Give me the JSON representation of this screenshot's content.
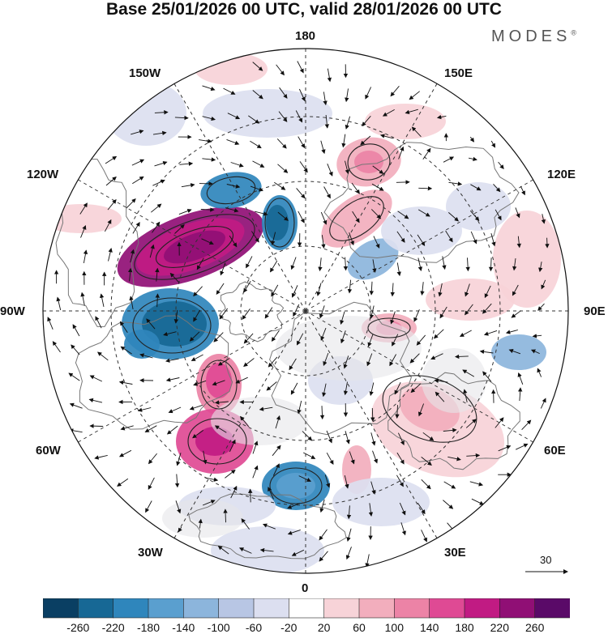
{
  "title": "Base 25/01/2026 00 UTC, valid 28/01/2026 00 UTC",
  "brand": "MODES",
  "brand_mark": "®",
  "longitude_labels": {
    "top": "180",
    "bottom": "0",
    "left": "90W",
    "right": "90E",
    "upper_left_150": "150W",
    "upper_right_150": "150E",
    "left_120": "120W",
    "right_120": "120E",
    "lower_left_60": "60W",
    "lower_right_60": "60E",
    "lower_left_30": "30W",
    "lower_right_30": "30E"
  },
  "wind_reference": {
    "label": "30",
    "value": 30
  },
  "colorbar": {
    "ticks": [
      "-260",
      "-220",
      "-180",
      "-140",
      "-100",
      "-60",
      "-20",
      "20",
      "60",
      "100",
      "140",
      "180",
      "220",
      "260"
    ],
    "colors": [
      "#0a3f63",
      "#176895",
      "#2f86bc",
      "#5a9fcf",
      "#8cb5dc",
      "#b8c6e4",
      "#dcdff0",
      "#ffffff",
      "#f7d3d8",
      "#f2aebd",
      "#ec83a6",
      "#df4a94",
      "#c11b83",
      "#900f75",
      "#5a0a68"
    ]
  }
}
